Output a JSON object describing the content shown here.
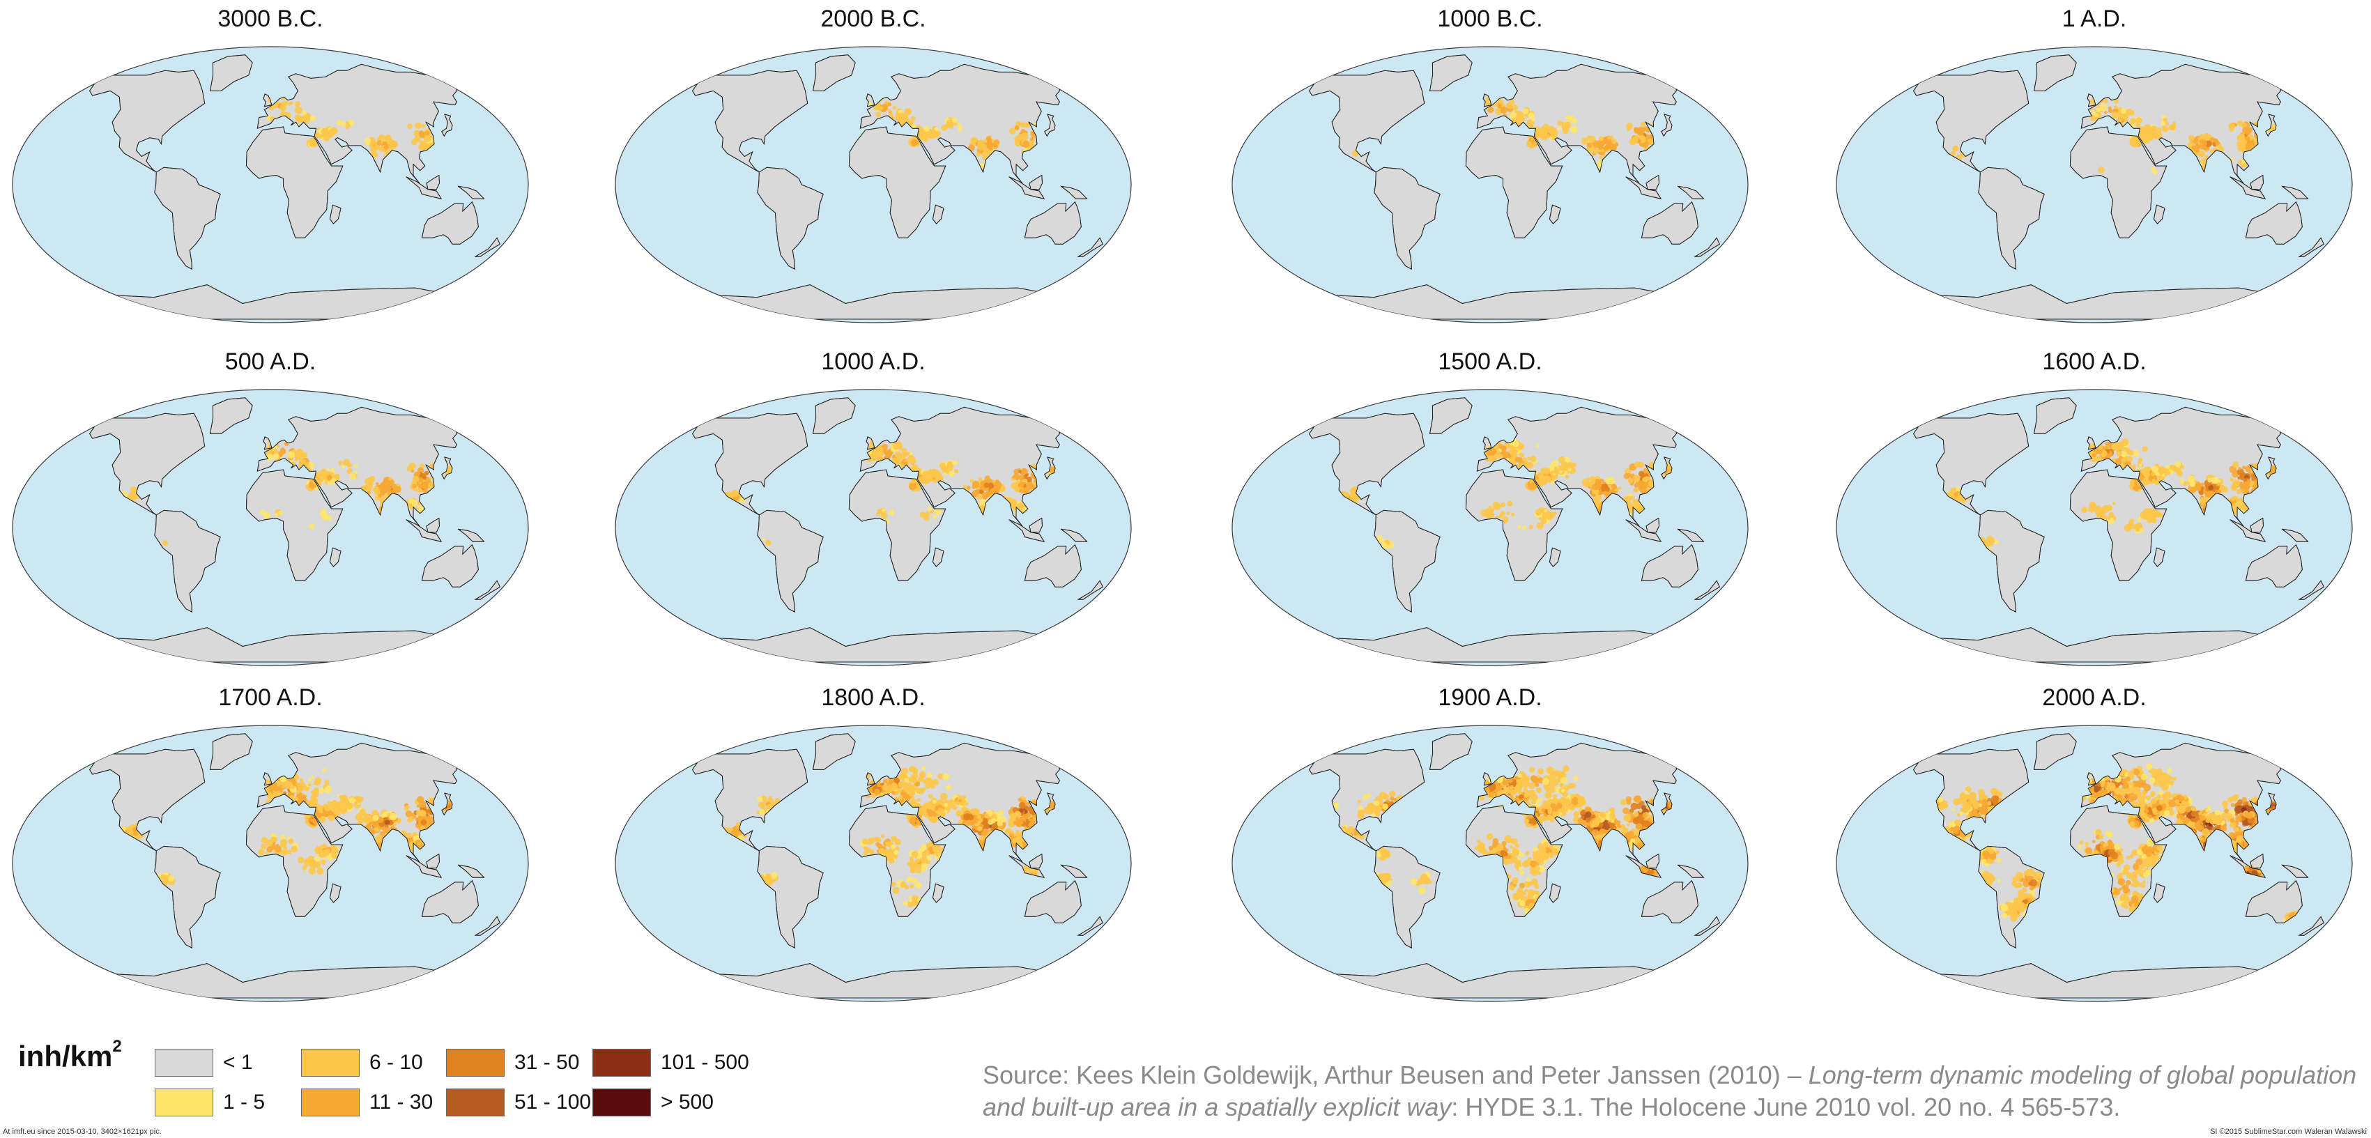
{
  "map": {
    "ocean_color": "#cde8f2",
    "land_color": "#d9d9d9",
    "outline_color": "#222222",
    "panels": [
      {
        "title": "3000 B.C.",
        "intensity": 0.18
      },
      {
        "title": "2000 B.C.",
        "intensity": 0.22
      },
      {
        "title": "1000 B.C.",
        "intensity": 0.26
      },
      {
        "title": "1 A.D.",
        "intensity": 0.32
      },
      {
        "title": "500 A.D.",
        "intensity": 0.36
      },
      {
        "title": "1000 A.D.",
        "intensity": 0.4
      },
      {
        "title": "1500 A.D.",
        "intensity": 0.46
      },
      {
        "title": "1600 A.D.",
        "intensity": 0.5
      },
      {
        "title": "1700 A.D.",
        "intensity": 0.56
      },
      {
        "title": "1800 A.D.",
        "intensity": 0.66
      },
      {
        "title": "1900 A.D.",
        "intensity": 0.8
      },
      {
        "title": "2000 A.D.",
        "intensity": 1.0
      }
    ]
  },
  "legend": {
    "unit_base": "inh/km",
    "unit_sup": "2",
    "classes": [
      {
        "label": "< 1",
        "color": "#d9d9d9"
      },
      {
        "label": "1 - 5",
        "color": "#fde66a"
      },
      {
        "label": "6 - 10",
        "color": "#fcc64a"
      },
      {
        "label": "11 - 30",
        "color": "#f7a933"
      },
      {
        "label": "31 - 50",
        "color": "#e0821f"
      },
      {
        "label": "51 - 100",
        "color": "#b65b22"
      },
      {
        "label": "101 - 500",
        "color": "#8c2e16"
      },
      {
        "label": "> 500",
        "color": "#5a0c0c"
      }
    ]
  },
  "source": {
    "prefix": "Source: Kees Klein Goldewijk, Arthur Beusen and Peter Janssen (2010) – ",
    "title_italic": "Long-term dynamic modeling of global population and built-up area in a spatially explicit way",
    "suffix": ": HYDE 3.1. The Holocene June 2010 vol. 20 no. 4 565-573."
  },
  "footer": {
    "left": "At imft.eu since 2015-03-10, 3402×1621px pic.",
    "right": "SI ©2015 SublimeStar.com Waleran Walawski"
  }
}
